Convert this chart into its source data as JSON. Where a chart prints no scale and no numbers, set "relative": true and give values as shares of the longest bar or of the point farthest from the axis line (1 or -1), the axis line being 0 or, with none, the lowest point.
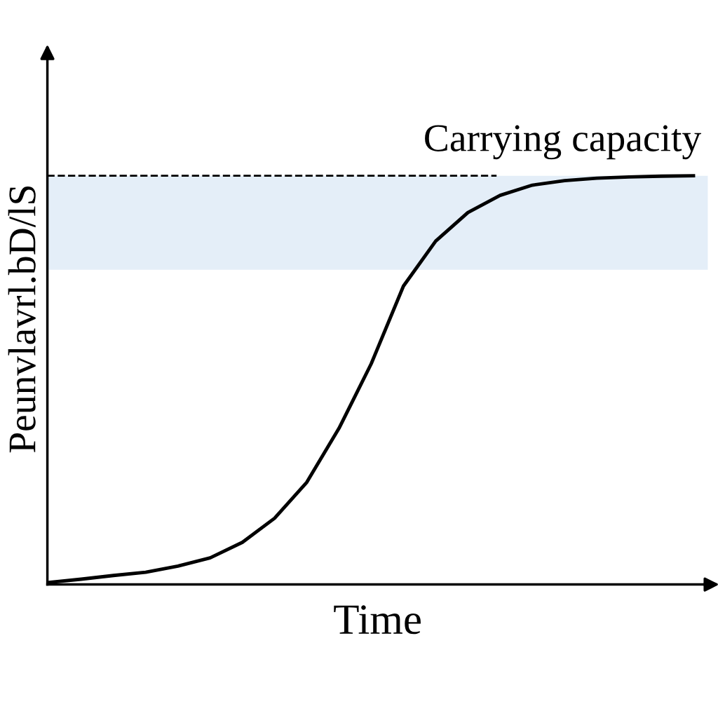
{
  "chart_data": {
    "type": "line",
    "relative": true,
    "xlabel": "Time",
    "ylabel": "Peunvlavrl.bD/lS",
    "categories": [
      null,
      null,
      null,
      null,
      null,
      null,
      null,
      null,
      null,
      null,
      null,
      null,
      null,
      null,
      null,
      null,
      null,
      null,
      null,
      null,
      null
    ],
    "series": [
      {
        "color": "#000000",
        "values": [
          0.005,
          0.013,
          0.022,
          0.03,
          0.045,
          0.065,
          0.103,
          0.162,
          0.25,
          0.382,
          0.54,
          0.73,
          0.84,
          0.91,
          0.952,
          0.977,
          0.988,
          0.994,
          0.997,
          0.999,
          1.0
        ]
      }
    ],
    "ref_lines": [
      {
        "axis": "y",
        "value": 1.0,
        "label": "Carrying capacity",
        "color": "#000000",
        "line_style": "dashed"
      }
    ],
    "bands": [
      {
        "axis": "y",
        "from": 0.77,
        "to": 1.0,
        "color": "#e4eef8"
      }
    ],
    "marker": "none",
    "line_style": "solid",
    "legend": false
  }
}
